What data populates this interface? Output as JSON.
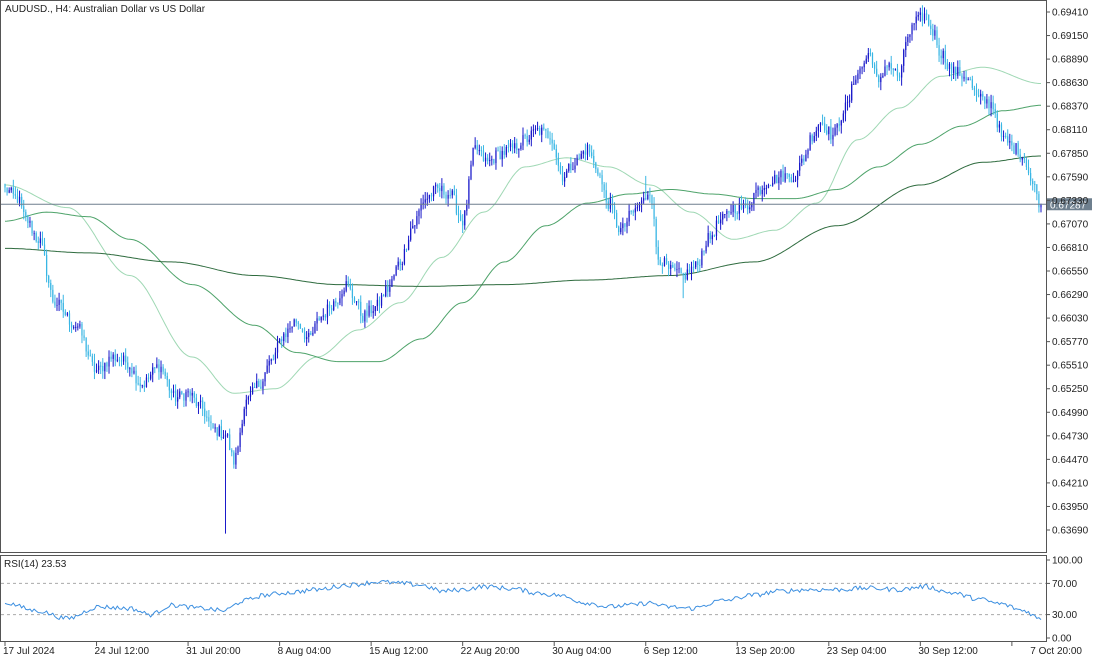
{
  "window": {
    "symbol_title": "AUDUSD., H4:  Australian Dollar vs US Dollar"
  },
  "colors": {
    "bull": "#1717c9",
    "bear": "#39b6e4",
    "ma_fast": "#9fd8b4",
    "ma_mid": "#4ea36a",
    "ma_slow": "#2e6b3e",
    "rsi": "#3c8fe0",
    "grid_frame": "#555555",
    "price_line": "#6e7f8e"
  },
  "chart_data": [
    {
      "type": "candlestick",
      "title": "AUDUSD., H4:  Australian Dollar vs US Dollar",
      "ylim": [
        0.6345,
        0.695
      ],
      "y_ticks": [
        0.6941,
        0.6915,
        0.6889,
        0.6863,
        0.6837,
        0.6811,
        0.6785,
        0.6759,
        0.6733,
        0.6707,
        0.6681,
        0.6655,
        0.6629,
        0.6603,
        0.6577,
        0.6551,
        0.6525,
        0.6499,
        0.6473,
        0.6447,
        0.6421,
        0.6395,
        0.6369
      ],
      "y_tick_labels": [
        "0.69410",
        "0.69150",
        "0.68890",
        "0.68630",
        "0.68370",
        "0.68110",
        "0.67850",
        "0.67590",
        "0.67330",
        "0.67070",
        "0.66810",
        "0.66550",
        "0.66290",
        "0.66030",
        "0.65770",
        "0.65510",
        "0.65250",
        "0.64990",
        "0.64730",
        "0.64470",
        "0.64210",
        "0.63950",
        "0.63690"
      ],
      "current_price": 0.67287,
      "current_price_label": "0.67287",
      "x_tick_labels": [
        "17 Jul 2024",
        "24 Jul 12:00",
        "31 Jul 20:00",
        "8 Aug 04:00",
        "15 Aug 12:00",
        "22 Aug 20:00",
        "30 Aug 04:00",
        "6 Sep 12:00",
        "13 Sep 20:00",
        "23 Sep 04:00",
        "30 Sep 12:00",
        "7 Oct 20:00"
      ],
      "x_tick_bars": [
        0,
        44,
        88,
        132,
        176,
        220,
        264,
        308,
        352,
        396,
        440,
        484
      ],
      "close_anchors": [
        [
          0,
          0.6745
        ],
        [
          6,
          0.6735
        ],
        [
          10,
          0.6712
        ],
        [
          16,
          0.669
        ],
        [
          24,
          0.662
        ],
        [
          34,
          0.6595
        ],
        [
          44,
          0.6545
        ],
        [
          52,
          0.656
        ],
        [
          58,
          0.6555
        ],
        [
          66,
          0.653
        ],
        [
          74,
          0.655
        ],
        [
          82,
          0.6515
        ],
        [
          88,
          0.652
        ],
        [
          94,
          0.6505
        ],
        [
          100,
          0.648
        ],
        [
          106,
          0.6475
        ],
        [
          110,
          0.6445
        ],
        [
          116,
          0.651
        ],
        [
          122,
          0.653
        ],
        [
          128,
          0.6555
        ],
        [
          134,
          0.6585
        ],
        [
          140,
          0.66
        ],
        [
          146,
          0.658
        ],
        [
          152,
          0.6605
        ],
        [
          158,
          0.662
        ],
        [
          164,
          0.664
        ],
        [
          168,
          0.6625
        ],
        [
          172,
          0.6605
        ],
        [
          178,
          0.6615
        ],
        [
          184,
          0.6635
        ],
        [
          190,
          0.6665
        ],
        [
          196,
          0.6705
        ],
        [
          202,
          0.6735
        ],
        [
          208,
          0.6745
        ],
        [
          214,
          0.674
        ],
        [
          220,
          0.671
        ],
        [
          226,
          0.679
        ],
        [
          232,
          0.6775
        ],
        [
          238,
          0.6785
        ],
        [
          244,
          0.679
        ],
        [
          250,
          0.68
        ],
        [
          256,
          0.681
        ],
        [
          262,
          0.6805
        ],
        [
          268,
          0.676
        ],
        [
          274,
          0.6775
        ],
        [
          280,
          0.679
        ],
        [
          284,
          0.677
        ],
        [
          290,
          0.673
        ],
        [
          296,
          0.67
        ],
        [
          302,
          0.672
        ],
        [
          306,
          0.673
        ],
        [
          310,
          0.6745
        ],
        [
          314,
          0.667
        ],
        [
          320,
          0.6655
        ],
        [
          326,
          0.665
        ],
        [
          332,
          0.666
        ],
        [
          338,
          0.669
        ],
        [
          344,
          0.671
        ],
        [
          350,
          0.6725
        ],
        [
          356,
          0.6725
        ],
        [
          362,
          0.6745
        ],
        [
          368,
          0.6755
        ],
        [
          374,
          0.676
        ],
        [
          380,
          0.676
        ],
        [
          384,
          0.678
        ],
        [
          388,
          0.6805
        ],
        [
          392,
          0.682
        ],
        [
          398,
          0.6805
        ],
        [
          404,
          0.6835
        ],
        [
          410,
          0.6875
        ],
        [
          416,
          0.6895
        ],
        [
          420,
          0.686
        ],
        [
          424,
          0.6885
        ],
        [
          430,
          0.687
        ],
        [
          434,
          0.6915
        ],
        [
          438,
          0.693
        ],
        [
          442,
          0.6938
        ],
        [
          446,
          0.692
        ],
        [
          450,
          0.6895
        ],
        [
          456,
          0.6875
        ],
        [
          462,
          0.687
        ],
        [
          468,
          0.6845
        ],
        [
          474,
          0.684
        ],
        [
          480,
          0.68
        ],
        [
          486,
          0.679
        ],
        [
          490,
          0.678
        ],
        [
          494,
          0.675
        ],
        [
          498,
          0.6729
        ]
      ],
      "ma_fast_anchors": [
        [
          0,
          0.675
        ],
        [
          30,
          0.6725
        ],
        [
          60,
          0.665
        ],
        [
          90,
          0.656
        ],
        [
          110,
          0.652
        ],
        [
          130,
          0.6525
        ],
        [
          150,
          0.656
        ],
        [
          170,
          0.659
        ],
        [
          190,
          0.662
        ],
        [
          210,
          0.667
        ],
        [
          230,
          0.672
        ],
        [
          250,
          0.677
        ],
        [
          270,
          0.678
        ],
        [
          290,
          0.677
        ],
        [
          310,
          0.675
        ],
        [
          330,
          0.672
        ],
        [
          350,
          0.669
        ],
        [
          370,
          0.67
        ],
        [
          390,
          0.673
        ],
        [
          410,
          0.68
        ],
        [
          430,
          0.6835
        ],
        [
          450,
          0.687
        ],
        [
          470,
          0.688
        ],
        [
          498,
          0.6862
        ]
      ],
      "ma_mid_anchors": [
        [
          0,
          0.671
        ],
        [
          20,
          0.672
        ],
        [
          40,
          0.6715
        ],
        [
          60,
          0.669
        ],
        [
          90,
          0.664
        ],
        [
          120,
          0.6595
        ],
        [
          140,
          0.6565
        ],
        [
          160,
          0.6555
        ],
        [
          180,
          0.6555
        ],
        [
          200,
          0.658
        ],
        [
          220,
          0.662
        ],
        [
          240,
          0.6665
        ],
        [
          260,
          0.6705
        ],
        [
          280,
          0.673
        ],
        [
          300,
          0.674
        ],
        [
          320,
          0.6745
        ],
        [
          340,
          0.674
        ],
        [
          360,
          0.6735
        ],
        [
          380,
          0.6735
        ],
        [
          400,
          0.6745
        ],
        [
          420,
          0.677
        ],
        [
          440,
          0.6795
        ],
        [
          460,
          0.6815
        ],
        [
          480,
          0.6832
        ],
        [
          498,
          0.6838
        ]
      ],
      "ma_slow_anchors": [
        [
          0,
          0.668
        ],
        [
          40,
          0.6675
        ],
        [
          80,
          0.6665
        ],
        [
          120,
          0.665
        ],
        [
          160,
          0.664
        ],
        [
          200,
          0.6638
        ],
        [
          240,
          0.664
        ],
        [
          280,
          0.6645
        ],
        [
          320,
          0.665
        ],
        [
          360,
          0.6665
        ],
        [
          400,
          0.6705
        ],
        [
          440,
          0.675
        ],
        [
          470,
          0.6775
        ],
        [
          498,
          0.6782
        ]
      ]
    },
    {
      "type": "line",
      "title": "RSI(14) 23.53",
      "ylim": [
        0,
        100
      ],
      "y_ticks": [
        100,
        70,
        30,
        0
      ],
      "y_tick_labels": [
        "100.00",
        "70.00",
        "30.00",
        "0.00"
      ],
      "levels": [
        70,
        30
      ],
      "rsi_anchors": [
        [
          0,
          45
        ],
        [
          15,
          35
        ],
        [
          30,
          25
        ],
        [
          45,
          40
        ],
        [
          60,
          38
        ],
        [
          70,
          30
        ],
        [
          80,
          42
        ],
        [
          95,
          38
        ],
        [
          105,
          35
        ],
        [
          115,
          48
        ],
        [
          125,
          55
        ],
        [
          135,
          58
        ],
        [
          150,
          62
        ],
        [
          165,
          68
        ],
        [
          180,
          72
        ],
        [
          190,
          70
        ],
        [
          200,
          68
        ],
        [
          210,
          60
        ],
        [
          220,
          62
        ],
        [
          230,
          66
        ],
        [
          245,
          63
        ],
        [
          255,
          58
        ],
        [
          265,
          55
        ],
        [
          280,
          45
        ],
        [
          290,
          40
        ],
        [
          300,
          42
        ],
        [
          310,
          45
        ],
        [
          318,
          40
        ],
        [
          330,
          38
        ],
        [
          345,
          48
        ],
        [
          360,
          55
        ],
        [
          372,
          60
        ],
        [
          386,
          62
        ],
        [
          400,
          62
        ],
        [
          415,
          64
        ],
        [
          430,
          62
        ],
        [
          442,
          66
        ],
        [
          455,
          58
        ],
        [
          468,
          50
        ],
        [
          478,
          44
        ],
        [
          490,
          35
        ],
        [
          498,
          24
        ]
      ]
    }
  ]
}
